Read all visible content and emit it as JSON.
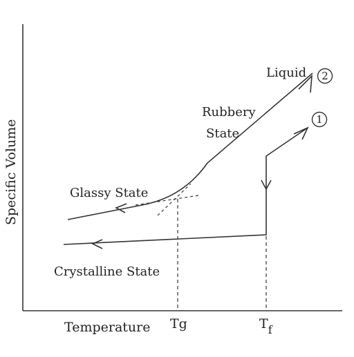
{
  "diagram": {
    "y_axis_label": "Specific Volume",
    "x_axis_label": "Temperature",
    "tick_tg": "Tg",
    "tick_tf_main": "T",
    "tick_tf_sub": "f",
    "region_liquid": "Liquid",
    "region_rubbery_line1": "Rubbery",
    "region_rubbery_line2": "State",
    "region_glassy": "Glassy State",
    "region_crystalline": "Crystalline State",
    "path_marker_2": "2",
    "path_marker_1": "1",
    "line_color": "#333333"
  }
}
